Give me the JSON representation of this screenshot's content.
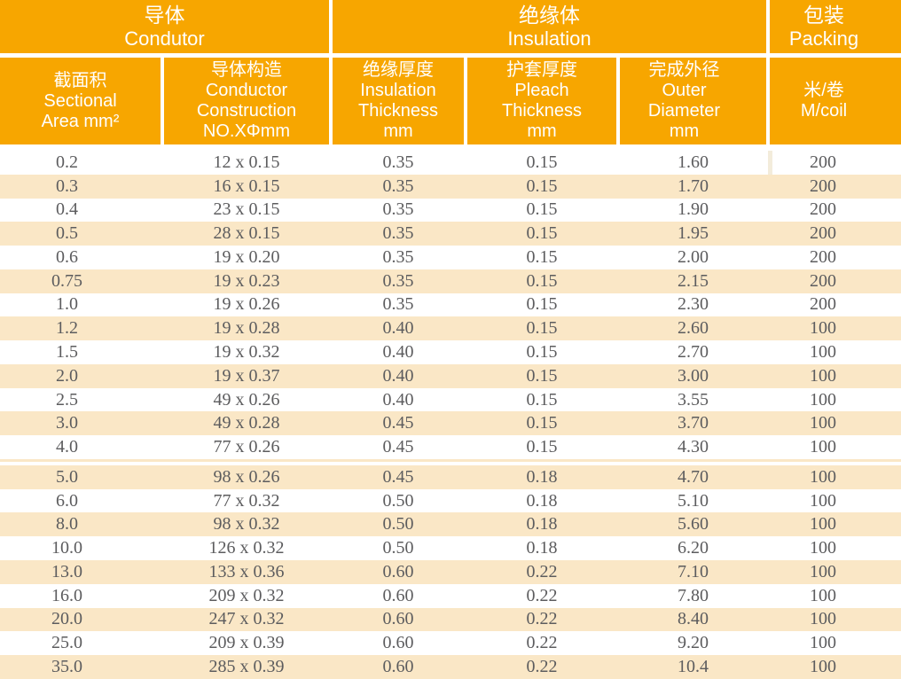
{
  "table": {
    "sections": [
      {
        "zh": "导体",
        "en": "Condutor"
      },
      {
        "zh": "绝缘体",
        "en": "Insulation"
      },
      {
        "zh": "包装",
        "en": "Packing"
      }
    ],
    "columns": [
      {
        "key": "sectional-area",
        "lines": [
          "截面积",
          "Sectional",
          "Area mm²"
        ]
      },
      {
        "key": "conductor-construction",
        "lines": [
          "导体构造",
          "Conductor",
          "Construction",
          "NO.XΦmm"
        ]
      },
      {
        "key": "insulation-thickness",
        "lines": [
          "绝缘厚度",
          "Insulation",
          "Thickness",
          "mm"
        ]
      },
      {
        "key": "pleach-thickness",
        "lines": [
          "护套厚度",
          "Pleach",
          "Thickness",
          "mm"
        ]
      },
      {
        "key": "outer-diameter",
        "lines": [
          "完成外径",
          "Outer",
          "Diameter",
          "mm"
        ]
      },
      {
        "key": "m-per-coil",
        "lines": [
          "米/卷",
          "M/coil"
        ]
      }
    ],
    "column_keys": [
      "sectional-area",
      "conductor-construction",
      "insulation-thickness",
      "pleach-thickness",
      "outer-diameter",
      "m-per-coil"
    ],
    "separator_index": 13,
    "rows": [
      [
        "0.2",
        "12 x 0.15",
        "0.35",
        "0.15",
        "1.60",
        "200"
      ],
      [
        "0.3",
        "16 x 0.15",
        "0.35",
        "0.15",
        "1.70",
        "200"
      ],
      [
        "0.4",
        "23 x 0.15",
        "0.35",
        "0.15",
        "1.90",
        "200"
      ],
      [
        "0.5",
        "28 x 0.15",
        "0.35",
        "0.15",
        "1.95",
        "200"
      ],
      [
        "0.6",
        "19 x 0.20",
        "0.35",
        "0.15",
        "2.00",
        "200"
      ],
      [
        "0.75",
        "19 x 0.23",
        "0.35",
        "0.15",
        "2.15",
        "200"
      ],
      [
        "1.0",
        "19 x 0.26",
        "0.35",
        "0.15",
        "2.30",
        "200"
      ],
      [
        "1.2",
        "19 x 0.28",
        "0.40",
        "0.15",
        "2.60",
        "100"
      ],
      [
        "1.5",
        "19 x 0.32",
        "0.40",
        "0.15",
        "2.70",
        "100"
      ],
      [
        "2.0",
        "19 x 0.37",
        "0.40",
        "0.15",
        "3.00",
        "100"
      ],
      [
        "2.5",
        "49 x 0.26",
        "0.40",
        "0.15",
        "3.55",
        "100"
      ],
      [
        "3.0",
        "49 x 0.28",
        "0.45",
        "0.15",
        "3.70",
        "100"
      ],
      [
        "4.0",
        "77 x 0.26",
        "0.45",
        "0.15",
        "4.30",
        "100"
      ],
      [
        "5.0",
        "98 x 0.26",
        "0.45",
        "0.18",
        "4.70",
        "100"
      ],
      [
        "6.0",
        "77 x 0.32",
        "0.50",
        "0.18",
        "5.10",
        "100"
      ],
      [
        "8.0",
        "98 x 0.32",
        "0.50",
        "0.18",
        "5.60",
        "100"
      ],
      [
        "10.0",
        "126 x 0.32",
        "0.50",
        "0.18",
        "6.20",
        "100"
      ],
      [
        "13.0",
        "133 x 0.36",
        "0.60",
        "0.22",
        "7.10",
        "100"
      ],
      [
        "16.0",
        "209 x 0.32",
        "0.60",
        "0.22",
        "7.80",
        "100"
      ],
      [
        "20.0",
        "247 x 0.32",
        "0.60",
        "0.22",
        "8.40",
        "100"
      ],
      [
        "25.0",
        "209 x 0.39",
        "0.60",
        "0.22",
        "9.20",
        "100"
      ],
      [
        "35.0",
        "285 x 0.39",
        "0.60",
        "0.22",
        "10.4",
        "100"
      ]
    ]
  },
  "colors": {
    "header_orange": "#F7A600",
    "row_cream": "#FAE7C6",
    "data_text": "#5C5C5E"
  }
}
